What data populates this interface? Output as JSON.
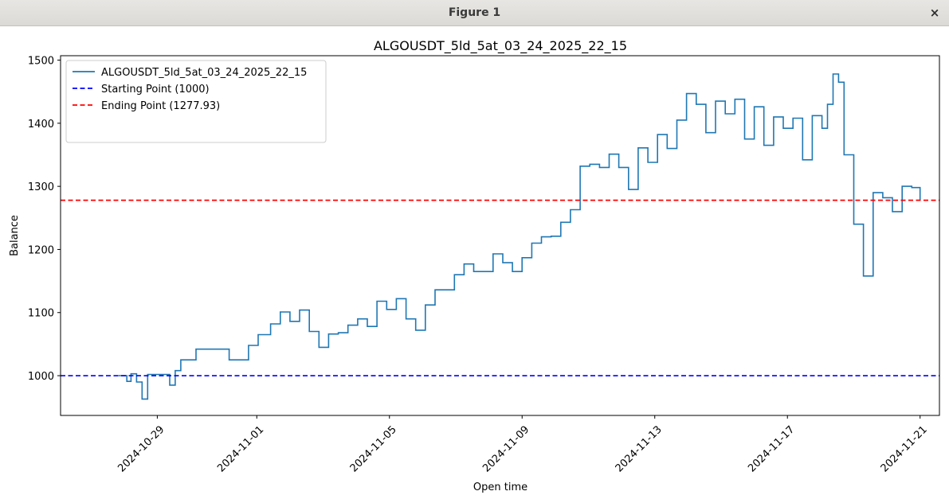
{
  "window": {
    "title": "Figure 1",
    "close_glyph": "×"
  },
  "chart_data": {
    "type": "line",
    "title": "ALGOUSDT_5ld_5at_03_24_2025_22_15",
    "xlabel": "Open time",
    "ylabel": "Balance",
    "ylim": [
      937,
      1507
    ],
    "xlim": [
      "2024-10-26T02:00",
      "2024-11-21T14:00"
    ],
    "x_ticks": [
      "2024-10-29",
      "2024-11-01",
      "2024-11-05",
      "2024-11-09",
      "2024-11-13",
      "2024-11-17",
      "2024-11-21"
    ],
    "y_ticks": [
      1000,
      1100,
      1200,
      1300,
      1400,
      1500
    ],
    "legend_position": "top-left",
    "grid": false,
    "series": [
      {
        "name": "ALGOUSDT_5ld_5at_03_24_2025_22_15",
        "color": "#1f77b4",
        "style": "solid",
        "x": [
          "2024-10-27T20:00",
          "2024-10-28T02:00",
          "2024-10-28T05:00",
          "2024-10-28T09:00",
          "2024-10-28T13:00",
          "2024-10-28T17:00",
          "2024-10-28T21:00",
          "2024-10-29T01:00",
          "2024-10-29T09:00",
          "2024-10-29T13:00",
          "2024-10-29T17:00",
          "2024-10-29T21:00",
          "2024-10-30T04:00",
          "2024-10-30T12:00",
          "2024-10-30T20:00",
          "2024-10-31T04:00",
          "2024-10-31T11:00",
          "2024-10-31T18:00",
          "2024-11-01T01:00",
          "2024-11-01T10:00",
          "2024-11-01T17:00",
          "2024-11-02T00:00",
          "2024-11-02T07:00",
          "2024-11-02T14:00",
          "2024-11-02T21:00",
          "2024-11-03T04:00",
          "2024-11-03T11:00",
          "2024-11-03T18:00",
          "2024-11-04T01:00",
          "2024-11-04T08:00",
          "2024-11-04T15:00",
          "2024-11-04T22:00",
          "2024-11-05T05:00",
          "2024-11-05T12:00",
          "2024-11-05T19:00",
          "2024-11-06T02:00",
          "2024-11-06T09:00",
          "2024-11-06T16:00",
          "2024-11-06T23:00",
          "2024-11-07T06:00",
          "2024-11-07T13:00",
          "2024-11-07T20:00",
          "2024-11-08T03:00",
          "2024-11-08T10:00",
          "2024-11-08T17:00",
          "2024-11-09T00:00",
          "2024-11-09T07:00",
          "2024-11-09T14:00",
          "2024-11-09T21:00",
          "2024-11-10T04:00",
          "2024-11-10T11:00",
          "2024-11-10T18:00",
          "2024-11-11T01:00",
          "2024-11-11T08:00",
          "2024-11-11T15:00",
          "2024-11-11T22:00",
          "2024-11-12T05:00",
          "2024-11-12T12:00",
          "2024-11-12T19:00",
          "2024-11-13T02:00",
          "2024-11-13T09:00",
          "2024-11-13T16:00",
          "2024-11-13T23:00",
          "2024-11-14T06:00",
          "2024-11-14T13:00",
          "2024-11-14T20:00",
          "2024-11-15T03:00",
          "2024-11-15T10:00",
          "2024-11-15T17:00",
          "2024-11-16T00:00",
          "2024-11-16T07:00",
          "2024-11-16T14:00",
          "2024-11-16T21:00",
          "2024-11-17T04:00",
          "2024-11-17T11:00",
          "2024-11-17T18:00",
          "2024-11-18T01:00",
          "2024-11-18T05:00",
          "2024-11-18T09:00",
          "2024-11-18T13:00",
          "2024-11-18T17:00",
          "2024-11-19T00:00",
          "2024-11-19T07:00",
          "2024-11-19T14:00",
          "2024-11-19T21:00",
          "2024-11-20T04:00",
          "2024-11-20T11:00",
          "2024-11-20T18:00",
          "2024-11-21T00:00"
        ],
        "values": [
          1000,
          991,
          1003,
          990,
          963,
          1002,
          1002,
          1002,
          985,
          1008,
          1025,
          1025,
          1042,
          1042,
          1042,
          1025,
          1025,
          1048,
          1065,
          1082,
          1101,
          1086,
          1104,
          1070,
          1045,
          1066,
          1068,
          1080,
          1090,
          1078,
          1118,
          1105,
          1122,
          1090,
          1072,
          1112,
          1136,
          1136,
          1160,
          1177,
          1165,
          1165,
          1193,
          1179,
          1165,
          1187,
          1210,
          1220,
          1221,
          1243,
          1263,
          1332,
          1335,
          1330,
          1351,
          1330,
          1295,
          1361,
          1338,
          1382,
          1360,
          1405,
          1447,
          1430,
          1385,
          1435,
          1415,
          1438,
          1375,
          1426,
          1365,
          1410,
          1392,
          1408,
          1342,
          1412,
          1392,
          1430,
          1478,
          1465,
          1350,
          1240,
          1158,
          1290,
          1282,
          1260,
          1300,
          1298,
          1277.93
        ]
      },
      {
        "name": "Starting Point (1000)",
        "color": "#0000ff",
        "style": "dashed",
        "y": 1000
      },
      {
        "name": "Ending Point (1277.93)",
        "color": "#ff0000",
        "style": "dashed",
        "y": 1277.93
      }
    ]
  }
}
